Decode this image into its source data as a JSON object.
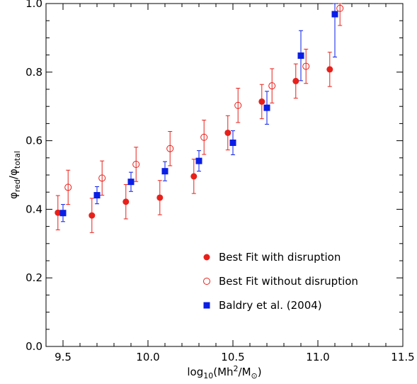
{
  "chart_data": {
    "type": "scatter",
    "title": "",
    "xlabel": {
      "base": "log",
      "base_sub": "10",
      "open": "(Mh",
      "sup": "2",
      "mid": "/M",
      "sub2": "⊙",
      "close": ")"
    },
    "ylabel": {
      "p1": "φ",
      "sub1": "red",
      "sep": "/",
      "p2": "φ",
      "sub2": "total"
    },
    "xlim": [
      9.4,
      11.5
    ],
    "ylim": [
      0.0,
      1.0
    ],
    "xticks": [
      9.5,
      10.0,
      10.5,
      11.0,
      11.5
    ],
    "xtick_labels": [
      "9.5",
      "10.0",
      "10.5",
      "11.0",
      "11.5"
    ],
    "yticks": [
      0.0,
      0.2,
      0.4,
      0.6,
      0.8,
      1.0
    ],
    "ytick_labels": [
      "0.0",
      "0.2",
      "0.4",
      "0.6",
      "0.8",
      "1.0"
    ],
    "legend_position": "bottom-right",
    "series": [
      {
        "name": "Best Fit with disruption",
        "marker": "filled-circle",
        "color": "#e8201a",
        "x": [
          9.47,
          9.67,
          9.87,
          10.07,
          10.27,
          10.47,
          10.67,
          10.87,
          11.07
        ],
        "y": [
          0.39,
          0.382,
          0.422,
          0.434,
          0.496,
          0.623,
          0.714,
          0.774,
          0.808
        ],
        "err": [
          0.05,
          0.05,
          0.05,
          0.05,
          0.05,
          0.05,
          0.05,
          0.05,
          0.05
        ]
      },
      {
        "name": "Best Fit without disruption",
        "marker": "open-circle",
        "color": "#e8201a",
        "x": [
          9.53,
          9.73,
          9.93,
          10.13,
          10.33,
          10.53,
          10.73,
          10.93,
          11.13
        ],
        "y": [
          0.464,
          0.491,
          0.531,
          0.577,
          0.61,
          0.703,
          0.76,
          0.817,
          0.986
        ],
        "err": [
          0.05,
          0.05,
          0.05,
          0.05,
          0.05,
          0.05,
          0.05,
          0.05,
          0.05
        ]
      },
      {
        "name": "Baldry et al. (2004)",
        "marker": "filled-square",
        "color": "#0a1ee6",
        "x": [
          9.5,
          9.7,
          9.9,
          10.1,
          10.3,
          10.5,
          10.7,
          10.9,
          11.1
        ],
        "y": [
          0.389,
          0.441,
          0.48,
          0.511,
          0.541,
          0.594,
          0.696,
          0.848,
          0.969
        ],
        "err": [
          0.025,
          0.025,
          0.028,
          0.028,
          0.03,
          0.035,
          0.048,
          0.073,
          0.125
        ]
      }
    ]
  }
}
